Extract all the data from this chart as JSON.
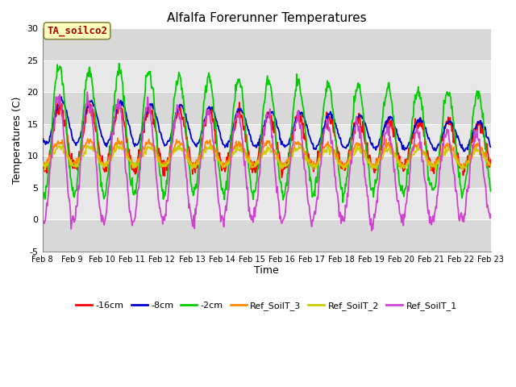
{
  "title": "Alfalfa Forerunner Temperatures",
  "ylabel": "Temperatures (C)",
  "xlabel": "Time",
  "ylim": [
    -5,
    30
  ],
  "xlim": [
    8,
    23
  ],
  "annotation_text": "TA_soilco2",
  "annotation_color": "#aa0000",
  "annotation_bg": "#ffffc0",
  "annotation_border": "#888844",
  "plot_bg": "#d8d8d8",
  "fig_bg": "#ffffff",
  "band_colors": [
    "#d8d8d8",
    "#e8e8e8"
  ],
  "series": {
    "neg16cm": {
      "label": "-16cm",
      "color": "#ff0000"
    },
    "neg8cm": {
      "label": "-8cm",
      "color": "#0000cc"
    },
    "neg2cm": {
      "label": "-2cm",
      "color": "#00cc00"
    },
    "ref3": {
      "label": "Ref_SoilT_3",
      "color": "#ff8800"
    },
    "ref2": {
      "label": "Ref_SoilT_2",
      "color": "#cccc00"
    },
    "ref1": {
      "label": "Ref_SoilT_1",
      "color": "#cc44cc"
    }
  },
  "yticks": [
    -5,
    0,
    5,
    10,
    15,
    20,
    25,
    30
  ],
  "xtick_days": [
    8,
    9,
    10,
    11,
    12,
    13,
    14,
    15,
    16,
    17,
    18,
    19,
    20,
    21,
    22,
    23
  ]
}
